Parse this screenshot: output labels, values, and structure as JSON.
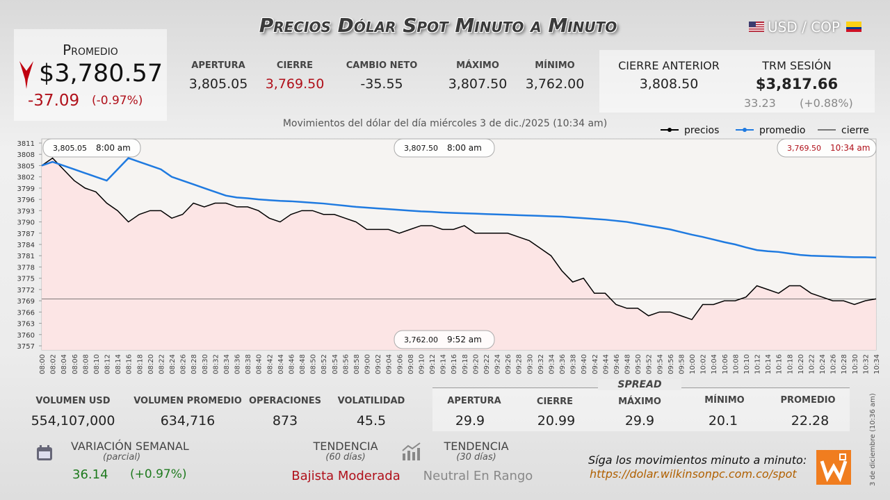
{
  "header": {
    "title": "Precios Dólar Spot Minuto a Minuto",
    "pair": "USD / COP"
  },
  "summary": {
    "label": "Promedio",
    "price": "$3,780.57",
    "change": "-37.09",
    "change_pct": "(-0.97%)"
  },
  "session": [
    {
      "label": "APERTURA",
      "value": "3,805.05"
    },
    {
      "label": "CIERRE",
      "value": "3,769.50"
    },
    {
      "label": "CAMBIO NETO",
      "value": "-35.55"
    },
    {
      "label": "MÁXIMO",
      "value": "3,807.50"
    },
    {
      "label": "MÍNIMO",
      "value": "3,762.00"
    }
  ],
  "previous": {
    "label": "CIERRE ANTERIOR",
    "value": "3,808.50"
  },
  "trm": {
    "label": "TRM SESIÓN",
    "value": "$3,817.66",
    "change": "33.23",
    "change_pct": "(+0.88%)"
  },
  "volume": [
    {
      "label": "VOLUMEN USD",
      "value": "554,107,000"
    },
    {
      "label": "VOLUMEN PROMEDIO",
      "value": "634,716"
    },
    {
      "label": "OPERACIONES",
      "value": "873"
    },
    {
      "label": "VOLATILIDAD",
      "value": "45.5"
    }
  ],
  "spread": {
    "title": "SPREAD",
    "items": [
      {
        "label": "APERTURA",
        "value": "29.9"
      },
      {
        "label": "CIERRE",
        "value": "20.99"
      },
      {
        "label": "MÁXIMO",
        "value": "29.9"
      },
      {
        "label": "MÍNIMO",
        "value": "20.1"
      },
      {
        "label": "PROMEDIO",
        "value": "22.28"
      }
    ]
  },
  "weekly": {
    "label": "VARIACIÓN SEMANAL",
    "note": "(parcial)",
    "change": "36.14",
    "change_pct": "(+0.97%)"
  },
  "trend": [
    {
      "label": "TENDENCIA",
      "note": "(60 días)",
      "value": "Bajista Moderada"
    },
    {
      "label": "TENDENCIA",
      "note": "(30 días)",
      "value": "Neutral En Rango"
    }
  ],
  "footer": {
    "text": "Síga los movimientos minuto a minuto:",
    "url": "https://dolar.wilkinsonpc.com.co/spot",
    "stamp": "3 de diciembre (10:36 am)"
  },
  "chart_data": {
    "type": "line",
    "subtitle": "Movimientos del dólar del día miércoles 3 de dic./2025 (10:34 am)",
    "categories": [
      "08:00",
      "08:02",
      "08:04",
      "08:06",
      "08:08",
      "08:10",
      "08:12",
      "08:14",
      "08:16",
      "08:18",
      "08:20",
      "08:22",
      "08:24",
      "08:26",
      "08:28",
      "08:30",
      "08:32",
      "08:34",
      "08:36",
      "08:38",
      "08:40",
      "08:42",
      "08:44",
      "08:46",
      "08:48",
      "08:50",
      "08:52",
      "08:54",
      "08:56",
      "08:58",
      "09:00",
      "09:02",
      "09:04",
      "09:06",
      "09:08",
      "09:10",
      "09:12",
      "09:14",
      "09:16",
      "09:18",
      "09:20",
      "09:22",
      "09:24",
      "09:26",
      "09:28",
      "09:30",
      "09:32",
      "09:34",
      "09:36",
      "09:38",
      "09:40",
      "09:42",
      "09:44",
      "09:46",
      "09:48",
      "09:50",
      "09:52",
      "09:54",
      "09:56",
      "09:58",
      "10:00",
      "10:02",
      "10:04",
      "10:06",
      "10:08",
      "10:10",
      "10:12",
      "10:14",
      "10:16",
      "10:18",
      "10:20",
      "10:22",
      "10:24",
      "10:26",
      "10:28",
      "10:30",
      "10:32",
      "10:34"
    ],
    "series": [
      {
        "name": "precios",
        "color": "#000000",
        "values": [
          3805,
          3807,
          3804,
          3801,
          3799,
          3798,
          3795,
          3793,
          3790,
          3792,
          3793,
          3793,
          3791,
          3792,
          3795,
          3794,
          3795,
          3795,
          3794,
          3794,
          3793,
          3791,
          3790,
          3792,
          3793,
          3793,
          3792,
          3792,
          3791,
          3790,
          3788,
          3788,
          3788,
          3787,
          3788,
          3789,
          3789,
          3788,
          3788,
          3789,
          3787,
          3787,
          3787,
          3787,
          3786,
          3785,
          3783,
          3781,
          3777,
          3774,
          3775,
          3771,
          3771,
          3768,
          3767,
          3767,
          3765,
          3766,
          3766,
          3765,
          3764,
          3768,
          3768,
          3769,
          3769,
          3770,
          3773,
          3772,
          3771,
          3773,
          3773,
          3771,
          3770,
          3769,
          3769,
          3768,
          3769,
          3769.5
        ]
      },
      {
        "name": "promedio",
        "color": "#1f7ae0",
        "values": [
          3805,
          3806,
          3805,
          3804,
          3803,
          3802,
          3801,
          3804,
          3807,
          3806,
          3805,
          3804,
          3802,
          3801,
          3800,
          3799,
          3798,
          3797,
          3796.5,
          3796.3,
          3796,
          3795.8,
          3795.6,
          3795.5,
          3795.3,
          3795.1,
          3794.9,
          3794.6,
          3794.3,
          3794,
          3793.8,
          3793.6,
          3793.4,
          3793.2,
          3793,
          3792.8,
          3792.7,
          3792.5,
          3792.4,
          3792.3,
          3792.2,
          3792.1,
          3792,
          3791.9,
          3791.8,
          3791.7,
          3791.6,
          3791.5,
          3791.4,
          3791.2,
          3791,
          3790.8,
          3790.6,
          3790.3,
          3790,
          3789.5,
          3789,
          3788.5,
          3788,
          3787.3,
          3786.6,
          3786,
          3785.3,
          3784.6,
          3784,
          3783.2,
          3782.5,
          3782.2,
          3782,
          3781.6,
          3781.2,
          3781,
          3780.9,
          3780.8,
          3780.7,
          3780.6,
          3780.6,
          3780.5
        ]
      }
    ],
    "reference_line": {
      "name": "cierre",
      "color": "#555555",
      "value": 3769.5
    },
    "ylim": [
      3757,
      3811
    ],
    "yticks": [
      3757,
      3760,
      3763,
      3766,
      3769,
      3772,
      3775,
      3778,
      3781,
      3784,
      3787,
      3790,
      3793,
      3796,
      3799,
      3802,
      3805,
      3808,
      3811
    ],
    "annotations": [
      {
        "value": "3,805.05",
        "time": "8:00 am"
      },
      {
        "value": "3,807.50",
        "time": "8:00 am"
      },
      {
        "value": "3,769.50",
        "time": "10:34 am"
      },
      {
        "value": "3,762.00",
        "time": "9:52 am"
      }
    ],
    "fill_color": "#fde3e3"
  }
}
